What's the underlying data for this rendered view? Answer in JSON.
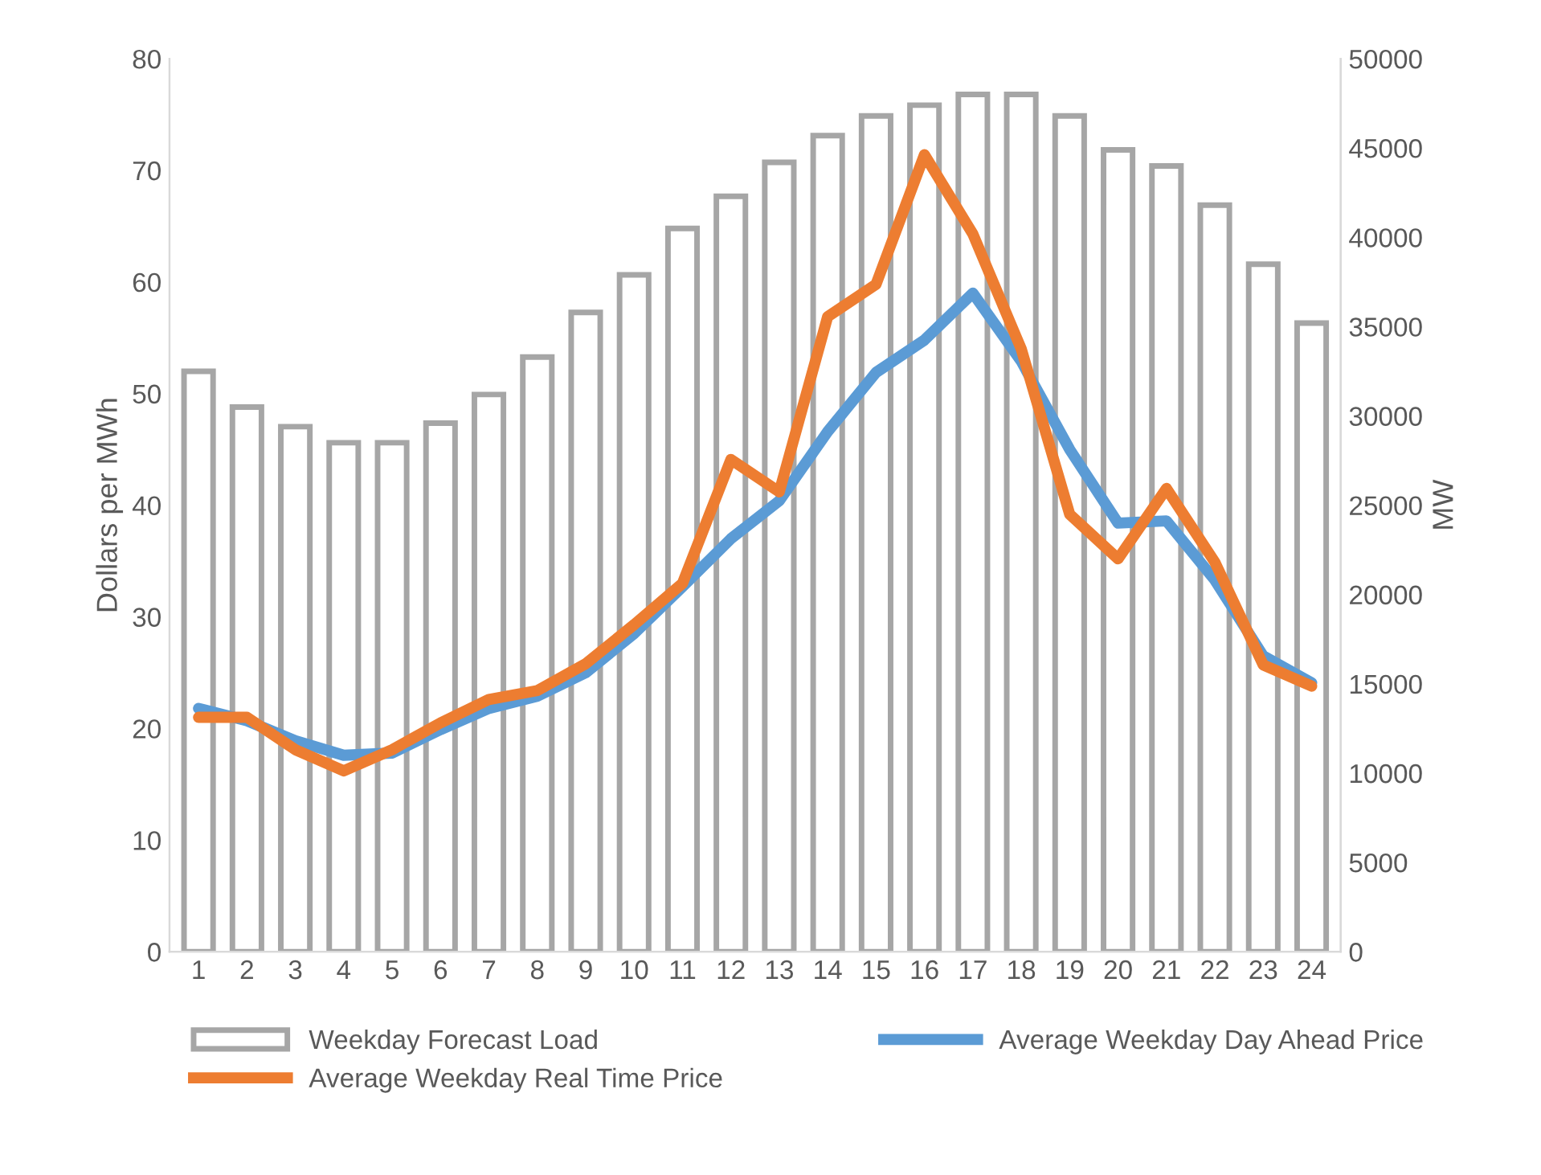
{
  "chart_data": {
    "type": "bar",
    "categories": [
      "1",
      "2",
      "3",
      "4",
      "5",
      "6",
      "7",
      "8",
      "9",
      "10",
      "11",
      "12",
      "13",
      "14",
      "15",
      "16",
      "17",
      "18",
      "19",
      "20",
      "21",
      "22",
      "23",
      "24"
    ],
    "ylabel": "Dollars per MWh",
    "y2label": "MW",
    "ylim": [
      0,
      80
    ],
    "yticks": [
      0,
      10,
      20,
      30,
      40,
      50,
      60,
      70,
      80
    ],
    "y2lim": [
      0,
      50000
    ],
    "y2ticks": [
      0,
      5000,
      10000,
      15000,
      20000,
      25000,
      30000,
      35000,
      40000,
      45000,
      50000
    ],
    "grid": false,
    "legend": "bottom",
    "series": [
      {
        "name": "Weekday Forecast Load",
        "axis": "y2",
        "color": "#a6a6a6",
        "values": [
          32500,
          30500,
          29400,
          28500,
          28500,
          29600,
          31200,
          33300,
          35800,
          37900,
          40500,
          42300,
          44200,
          45700,
          46800,
          47400,
          48000,
          48000,
          46800,
          44900,
          44000,
          41800,
          38500,
          35200
        ]
      },
      {
        "name": "Average Weekday Day Ahead Price",
        "type": "line",
        "axis": "y",
        "color": "#5b9bd5",
        "values": [
          21.8,
          20.7,
          18.9,
          17.6,
          17.8,
          19.9,
          21.8,
          22.9,
          25.0,
          28.5,
          32.7,
          37.0,
          40.4,
          46.6,
          51.9,
          54.8,
          59.0,
          52.9,
          45.0,
          38.4,
          38.6,
          33.3,
          26.5,
          24.1
        ]
      },
      {
        "name": "Average Weekday Real Time Price",
        "type": "line",
        "axis": "y",
        "color": "#ed7d31",
        "values": [
          21.0,
          21.0,
          18.1,
          16.2,
          18.1,
          20.5,
          22.6,
          23.4,
          25.8,
          29.3,
          33.0,
          44.1,
          41.2,
          56.9,
          59.8,
          71.4,
          64.3,
          54.0,
          39.2,
          35.2,
          41.5,
          34.9,
          25.7,
          23.8
        ]
      }
    ]
  }
}
